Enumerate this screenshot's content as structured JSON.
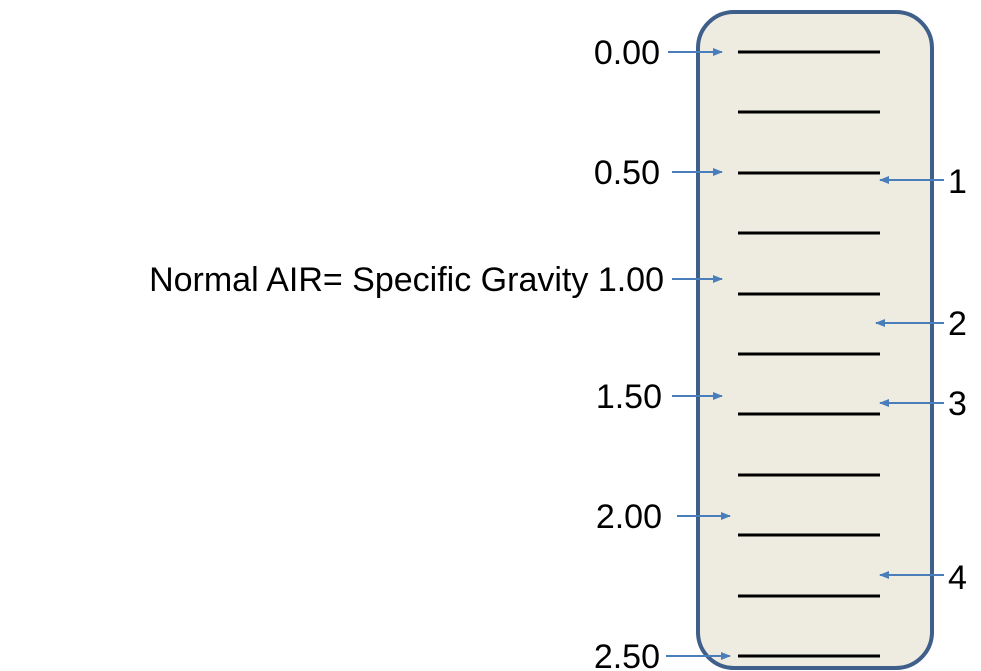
{
  "scale": {
    "left_labels": [
      {
        "value_text": "0.00",
        "prefix": ""
      },
      {
        "value_text": "0.50",
        "prefix": ""
      },
      {
        "value_text": "1.00",
        "prefix": "Normal AIR= Specific Gravity "
      },
      {
        "value_text": "1.50",
        "prefix": ""
      },
      {
        "value_text": "2.00",
        "prefix": ""
      },
      {
        "value_text": "2.50",
        "prefix": ""
      }
    ],
    "right_labels": [
      {
        "text": "1"
      },
      {
        "text": "2"
      },
      {
        "text": "3"
      },
      {
        "text": "4"
      }
    ],
    "graduation_count": 11
  },
  "colors": {
    "tube_fill": "#EEEBE0",
    "tube_stroke": "#3E5F8A",
    "arrow": "#4A7EBB",
    "line": "#000000",
    "text": "#000000"
  }
}
